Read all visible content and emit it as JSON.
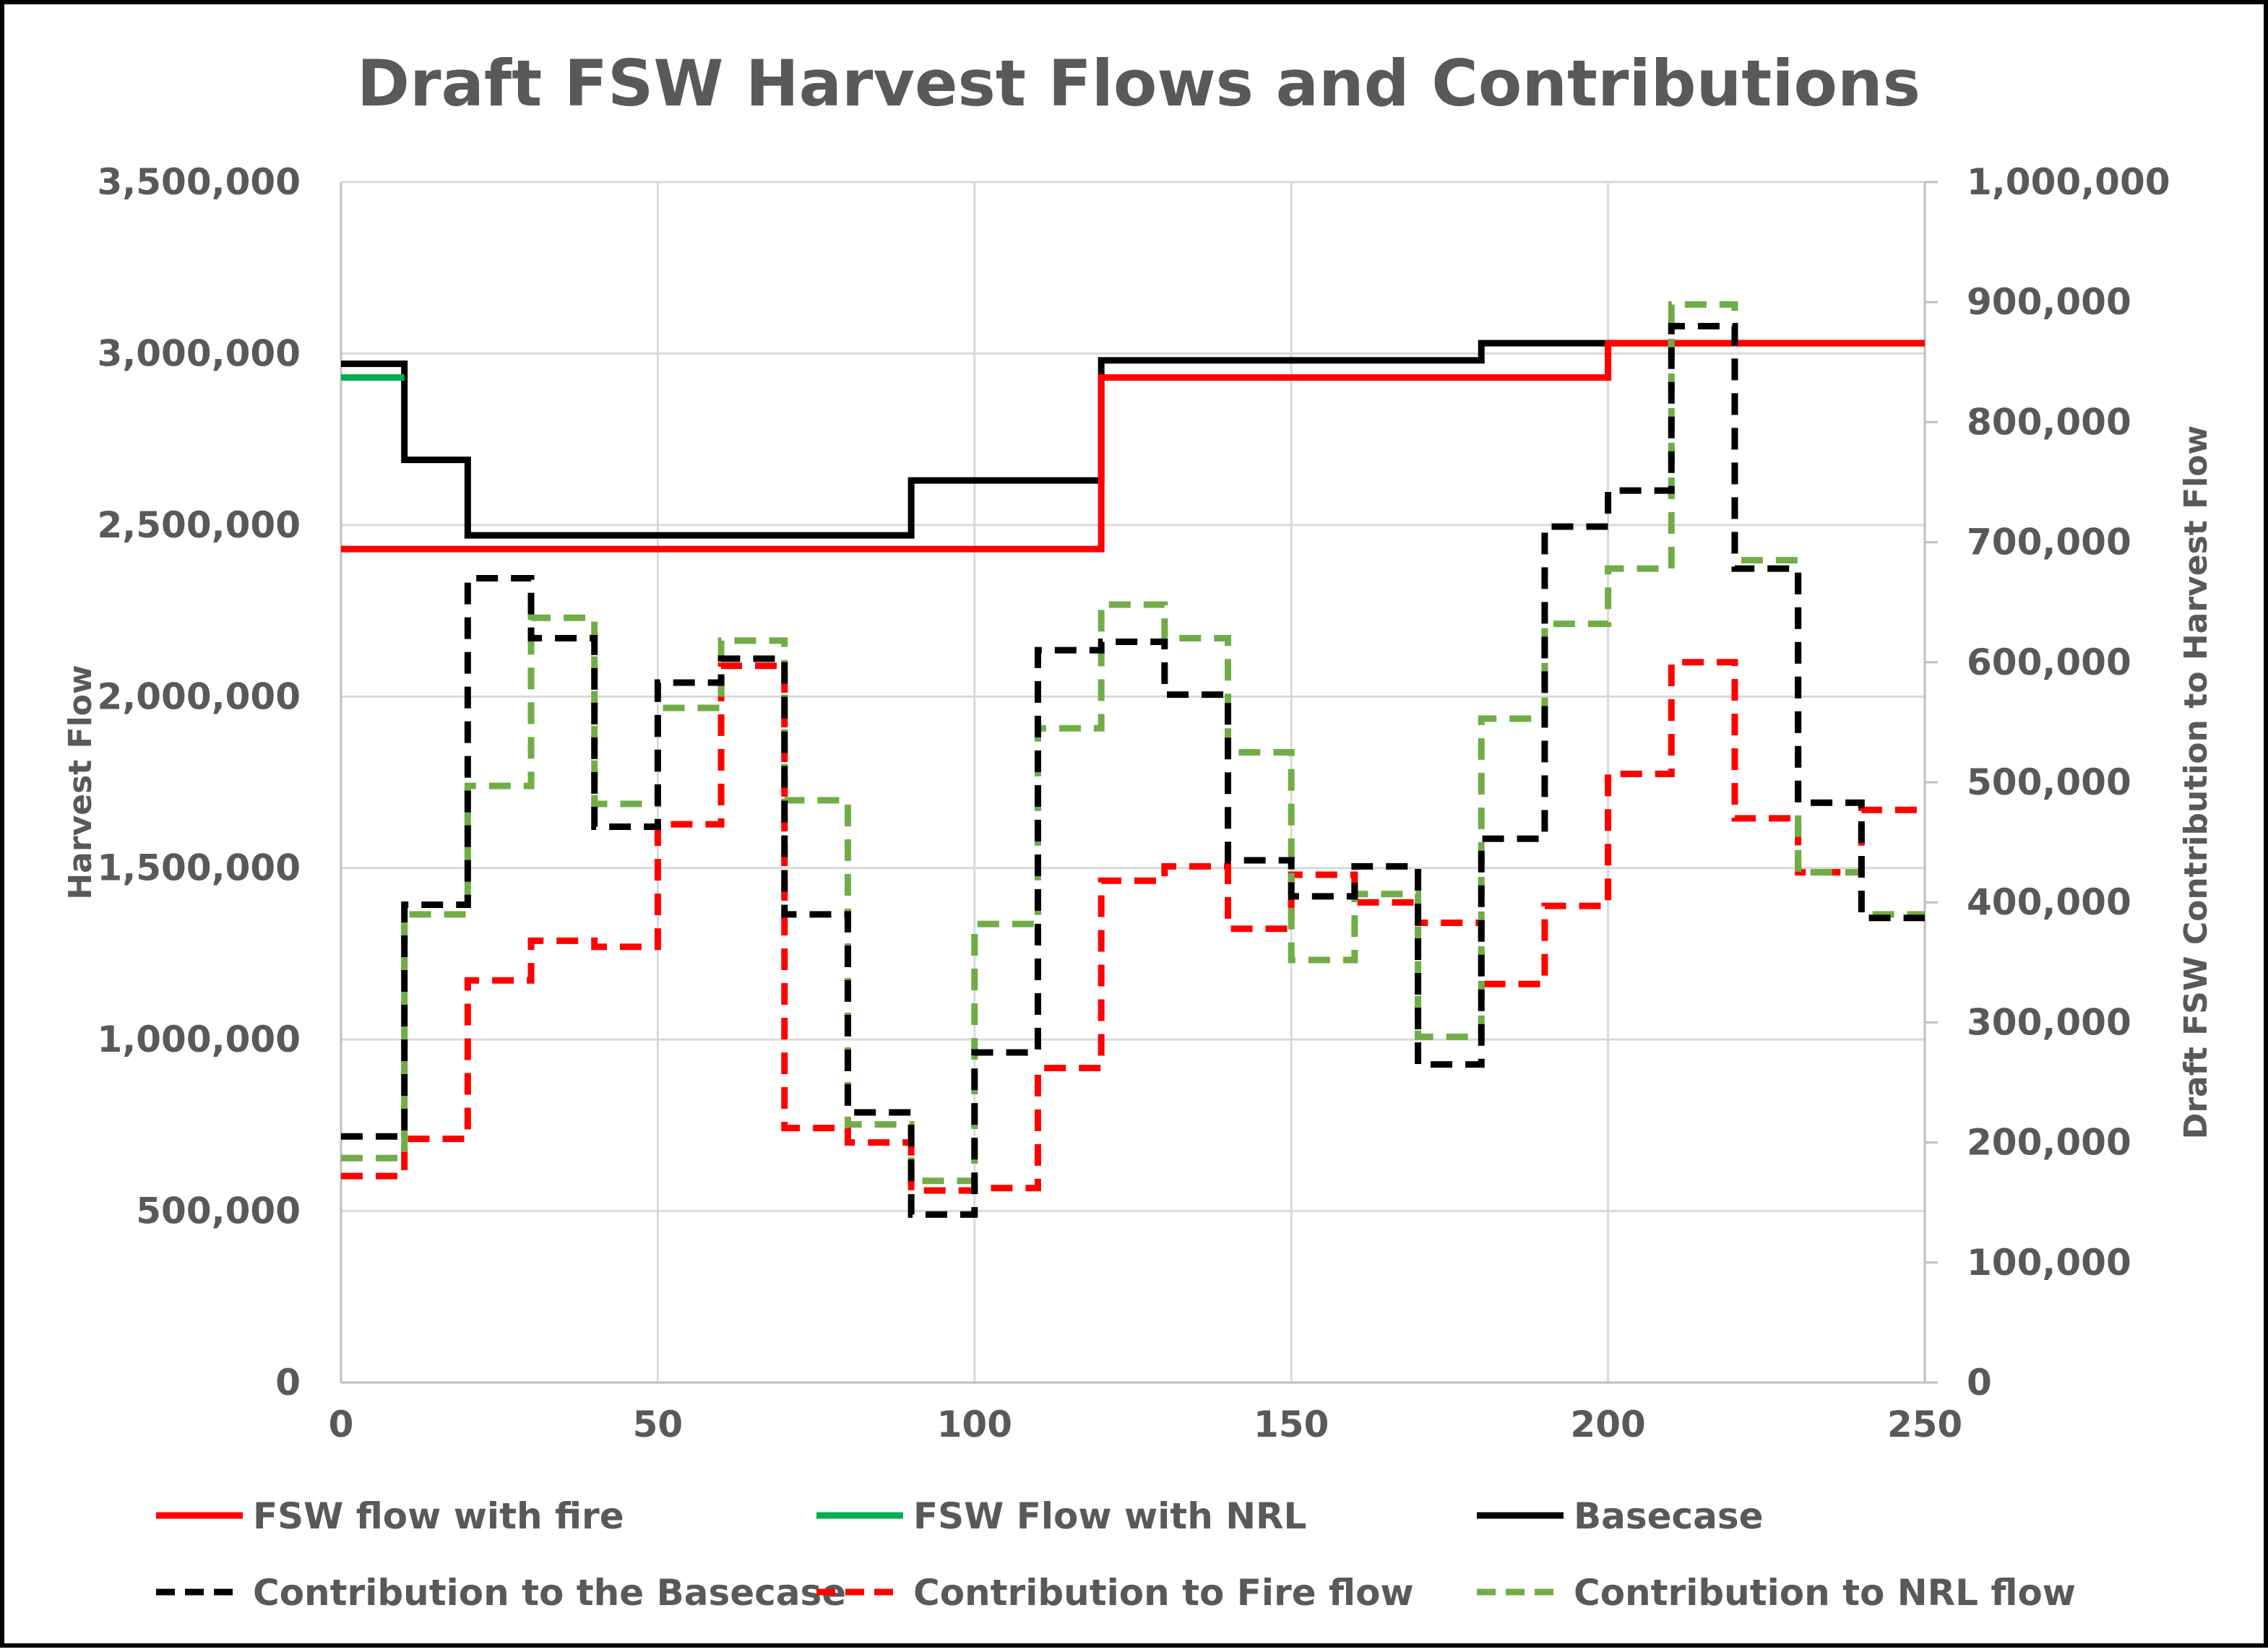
{
  "chart_data": {
    "type": "line",
    "title": "Draft FSW Harvest Flows and Contributions",
    "xlabel": "",
    "ylabel": "Harvest Flow",
    "y2label": "Draft FSW Contribution to Harvest Flow",
    "xlim": [
      0,
      250
    ],
    "ylim": [
      0,
      3500000
    ],
    "y2lim": [
      0,
      1000000
    ],
    "x_ticks": [
      "0",
      "50",
      "100",
      "150",
      "200",
      "250"
    ],
    "y_ticks": [
      "0",
      "500,000",
      "1,000,000",
      "1,500,000",
      "2,000,000",
      "2,500,000",
      "3,000,000",
      "3,500,000"
    ],
    "y2_ticks": [
      "0",
      "100,000",
      "200,000",
      "300,000",
      "400,000",
      "500,000",
      "600,000",
      "700,000",
      "800,000",
      "900,000",
      "1,000,000"
    ],
    "grid": true,
    "legend_position": "bottom",
    "line_style": "step",
    "series": [
      {
        "name": "FSW flow with fire",
        "axis": "left",
        "color": "#FF0000",
        "dash": "solid",
        "x": [
          0,
          90,
          120,
          200,
          250
        ],
        "y": [
          2430000,
          2430000,
          2930000,
          3030000,
          3030000
        ]
      },
      {
        "name": "FSW Flow with NRL",
        "axis": "left",
        "color": "#00B050",
        "dash": "solid",
        "x": [
          0,
          10
        ],
        "y": [
          2930000,
          2930000
        ]
      },
      {
        "name": "Basecase",
        "axis": "left",
        "color": "#000000",
        "dash": "solid",
        "x": [
          0,
          10,
          20,
          90,
          120,
          180,
          250
        ],
        "y": [
          2970000,
          2690000,
          2470000,
          2630000,
          2980000,
          3030000,
          3030000
        ]
      },
      {
        "name": "Contribution to the Basecase",
        "axis": "right",
        "color": "#000000",
        "dash": "dashed",
        "x": [
          0,
          10,
          20,
          30,
          40,
          50,
          60,
          70,
          80,
          90,
          100,
          110,
          120,
          130,
          140,
          150,
          160,
          170,
          180,
          190,
          200,
          210,
          220,
          230,
          240,
          250
        ],
        "y": [
          205000,
          398000,
          670000,
          620000,
          463000,
          583000,
          603000,
          390000,
          225000,
          140000,
          275000,
          610000,
          617000,
          573000,
          435000,
          405000,
          430000,
          265000,
          453000,
          713000,
          743000,
          880000,
          678000,
          483000,
          387000,
          387000
        ]
      },
      {
        "name": "Contribution to Fire flow",
        "axis": "right",
        "color": "#FF0000",
        "dash": "dashed",
        "x": [
          0,
          10,
          20,
          30,
          40,
          50,
          60,
          70,
          80,
          90,
          100,
          110,
          120,
          130,
          140,
          150,
          160,
          170,
          180,
          190,
          200,
          210,
          220,
          230,
          240,
          250
        ],
        "y": [
          172000,
          203000,
          335000,
          368000,
          363000,
          465000,
          597000,
          212000,
          200000,
          160000,
          162000,
          262000,
          418000,
          430000,
          378000,
          423000,
          400000,
          383000,
          332000,
          397000,
          507000,
          600000,
          470000,
          425000,
          477000,
          477000
        ]
      },
      {
        "name": "Contribution to NRL flow",
        "axis": "right",
        "color": "#70AD47",
        "dash": "dashed",
        "x": [
          0,
          10,
          20,
          30,
          40,
          50,
          60,
          70,
          80,
          90,
          100,
          110,
          120,
          130,
          140,
          150,
          160,
          170,
          180,
          190,
          200,
          210,
          220,
          230,
          240,
          250
        ],
        "y": [
          187000,
          390000,
          497000,
          637000,
          482000,
          562000,
          618000,
          485000,
          215000,
          168000,
          382000,
          545000,
          648000,
          620000,
          525000,
          352000,
          407000,
          288000,
          553000,
          632000,
          678000,
          898000,
          685000,
          425000,
          390000,
          390000
        ]
      }
    ]
  }
}
